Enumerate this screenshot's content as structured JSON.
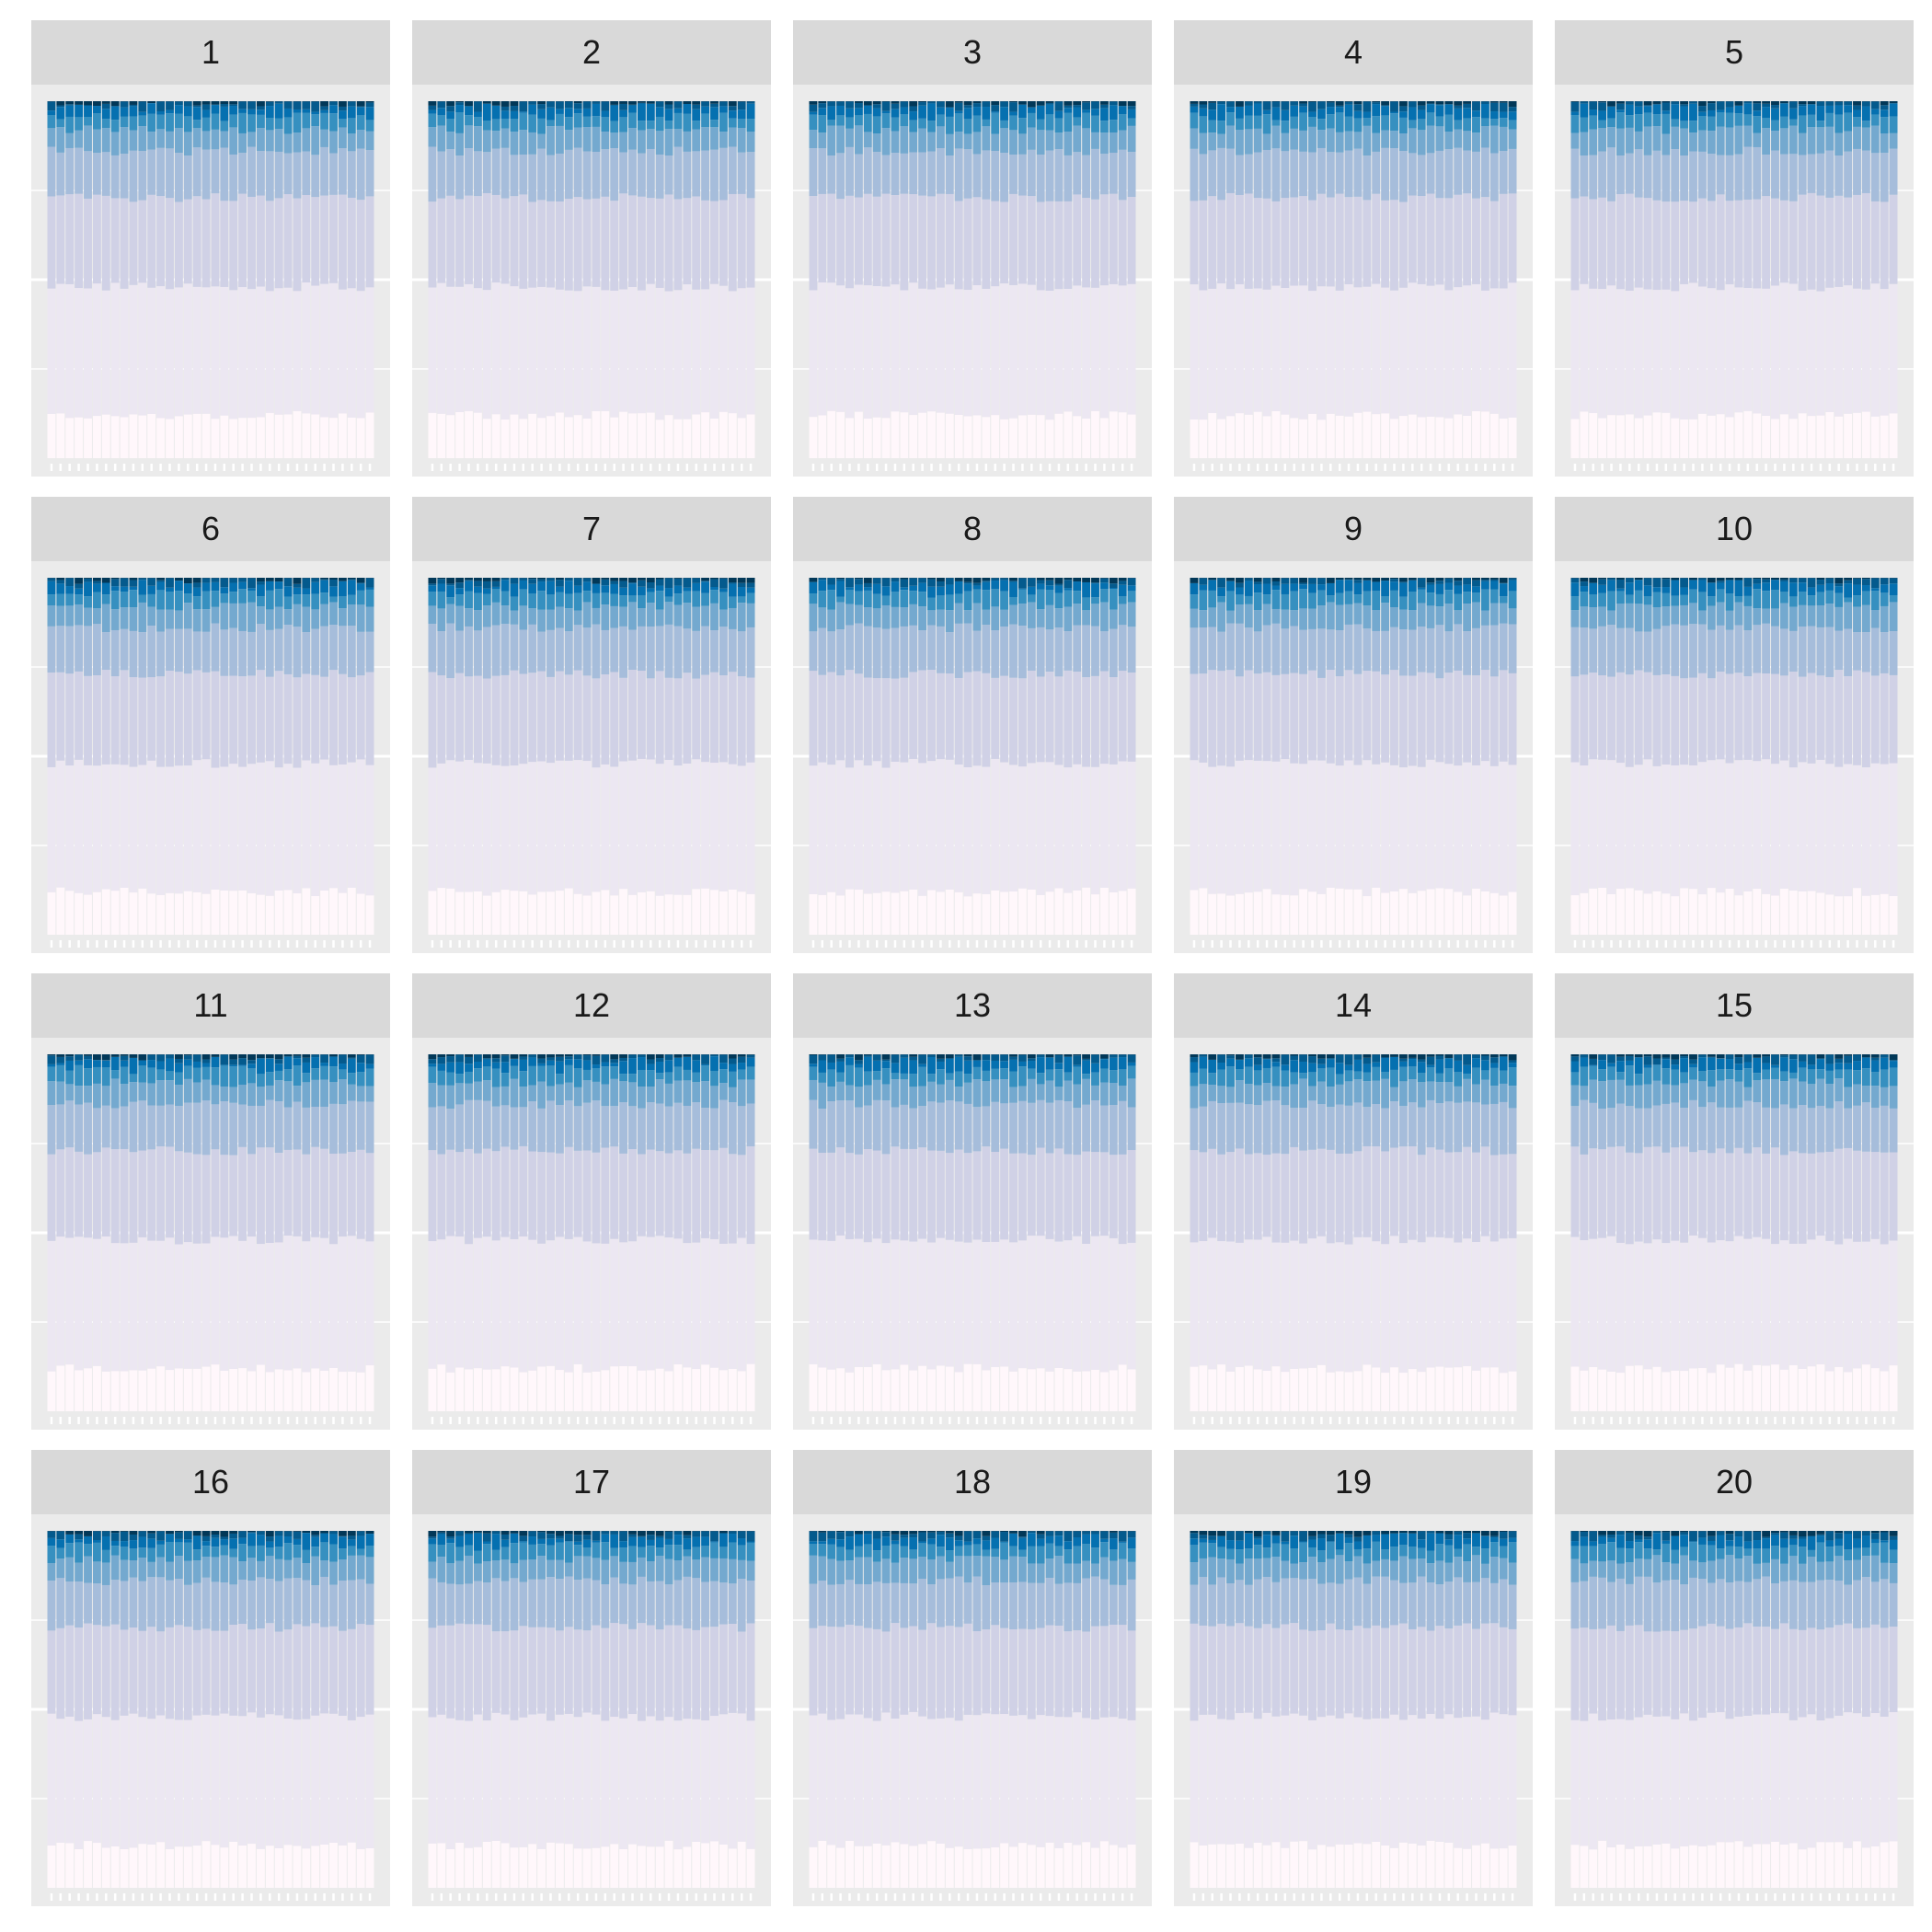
{
  "chart_data": {
    "type": "bar",
    "stacked": true,
    "facet_layout": {
      "rows": 4,
      "cols": 5
    },
    "facets": [
      "1",
      "2",
      "3",
      "4",
      "5",
      "6",
      "7",
      "8",
      "9",
      "10",
      "11",
      "12",
      "13",
      "14",
      "15",
      "16",
      "17",
      "18",
      "19",
      "20"
    ],
    "bars_per_facet": 36,
    "ylim": [
      0,
      1
    ],
    "grid": true,
    "legend": "none",
    "xlabel": "",
    "ylabel": "",
    "colors": [
      "#fff7fb",
      "#ece7f2",
      "#d0d1e6",
      "#a6bddb",
      "#74a9cf",
      "#3690c0",
      "#0570b0",
      "#045a8d",
      "#023858"
    ],
    "series_mean_proportions": [
      0.12,
      0.36,
      0.25,
      0.13,
      0.06,
      0.037,
      0.025,
      0.013,
      0.005
    ],
    "series_mean_cumulative_tops": [
      0.12,
      0.48,
      0.73,
      0.86,
      0.92,
      0.957,
      0.982,
      0.995,
      1.0
    ]
  }
}
